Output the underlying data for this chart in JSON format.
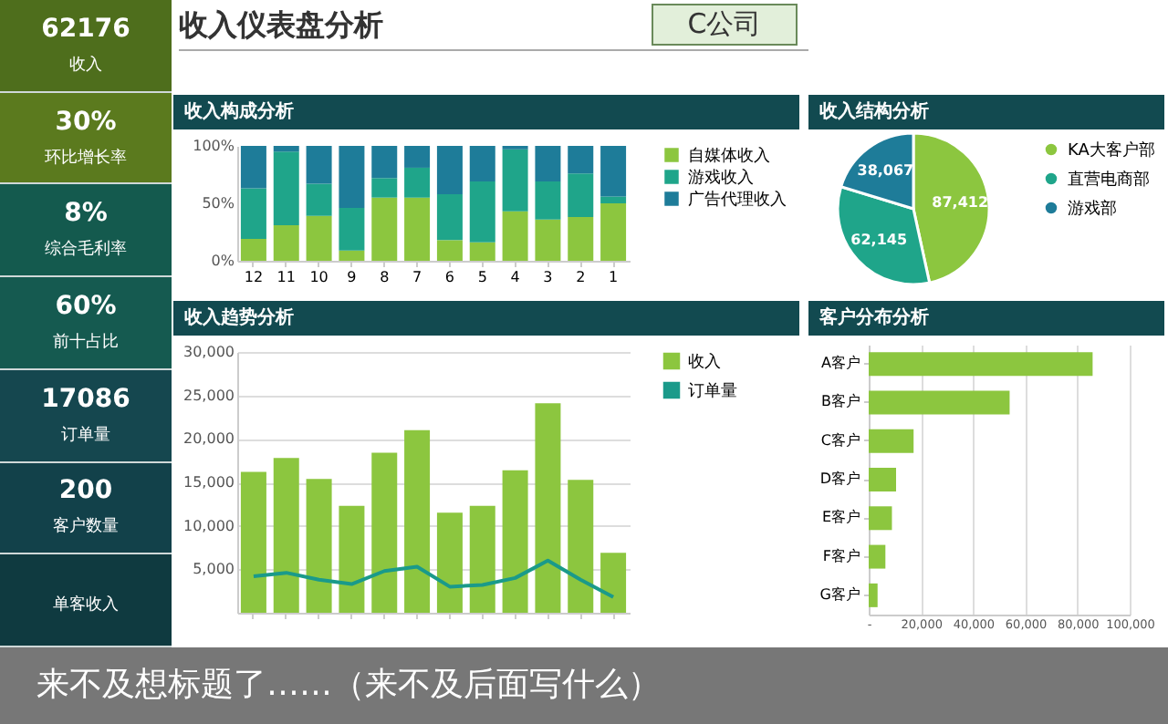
{
  "chart_data": [
    {
      "type": "other",
      "title": "收入仪表盘分析",
      "annotations": [
        "C公司",
        "62176",
        "收入",
        "30%",
        "环比增长率",
        "8%",
        "综合毛利率",
        "60%",
        "前十占比",
        "17086",
        "订单量",
        "200",
        "客户数量",
        "单客收入",
        "来不及想标题了……（来不及后面写什么）"
      ]
    },
    {
      "type": "bar",
      "title": "收入构成分析",
      "stacked": true,
      "categories": [
        "12",
        "11",
        "10",
        "9",
        "8",
        "7",
        "6",
        "5",
        "4",
        "3",
        "2",
        "1"
      ],
      "series": [
        {
          "name": "自媒体收入",
          "color": "#8cc63f",
          "values": [
            19,
            31,
            39,
            9,
            55,
            55,
            18,
            16,
            43,
            36,
            38,
            50
          ]
        },
        {
          "name": "游戏收入",
          "color": "#1fa58a",
          "values": [
            44,
            64,
            28,
            37,
            17,
            26,
            40,
            53,
            54,
            33,
            38,
            6
          ]
        },
        {
          "name": "广告代理收入",
          "color": "#1e7c99",
          "values": [
            37,
            5,
            33,
            54,
            28,
            19,
            42,
            31,
            3,
            31,
            24,
            44
          ]
        }
      ],
      "ylim": [
        0,
        100
      ],
      "yticks": [
        {
          "value": 0,
          "label": "0%"
        },
        {
          "value": 50,
          "label": "50%"
        },
        {
          "value": 100,
          "label": "100%"
        }
      ],
      "legend": "right"
    },
    {
      "type": "pie",
      "title": "收入结构分析",
      "categories": [
        "KA大客户部",
        "直营电商部",
        "游戏部"
      ],
      "values": [
        87412,
        62145,
        38067
      ],
      "value_labels": [
        "87,412",
        "62,145",
        "38,067"
      ],
      "colors": [
        "#8cc63f",
        "#1fa58a",
        "#1e7c99"
      ],
      "legend": "right"
    },
    {
      "type": "bar",
      "title": "收入趋势分析",
      "categories": [
        null,
        null,
        null,
        null,
        null,
        null,
        null,
        null,
        null,
        null,
        null,
        null
      ],
      "series": [
        {
          "name": "收入",
          "type": "bar",
          "color": "#8cc63f",
          "values": [
            16200,
            17800,
            15400,
            12300,
            18400,
            21000,
            11500,
            12300,
            16400,
            24100,
            15300,
            6900
          ]
        },
        {
          "name": "订单量",
          "type": "line",
          "color": "#1a9a8a",
          "values": [
            4200,
            4600,
            3800,
            3300,
            4800,
            5300,
            3000,
            3200,
            4000,
            6000,
            3800,
            1800
          ]
        }
      ],
      "ylim": [
        0,
        30000
      ],
      "yticks": [
        {
          "value": 5000,
          "label": "5,000"
        },
        {
          "value": 10000,
          "label": "10,000"
        },
        {
          "value": 15000,
          "label": "15,000"
        },
        {
          "value": 20000,
          "label": "20,000"
        },
        {
          "value": 25000,
          "label": "25,000"
        },
        {
          "value": 30000,
          "label": "30,000"
        }
      ],
      "grid": "y",
      "legend": "right"
    },
    {
      "type": "bar",
      "title": "客户分布分析",
      "orientation": "horizontal",
      "categories": [
        "A客户",
        "B客户",
        "C客户",
        "D客户",
        "E客户",
        "F客户",
        "G客户"
      ],
      "values": [
        85800,
        54000,
        17200,
        10500,
        8900,
        6400,
        3400
      ],
      "color": "#8cc63f",
      "xlim": [
        0,
        100000
      ],
      "xticks": [
        {
          "value": 0,
          "label": "-"
        },
        {
          "value": 20000,
          "label": "20,000"
        },
        {
          "value": 40000,
          "label": "40,000"
        },
        {
          "value": 60000,
          "label": "60,000"
        },
        {
          "value": 80000,
          "label": "80,000"
        },
        {
          "value": 100000,
          "label": "100,000"
        }
      ],
      "grid": "x"
    }
  ]
}
